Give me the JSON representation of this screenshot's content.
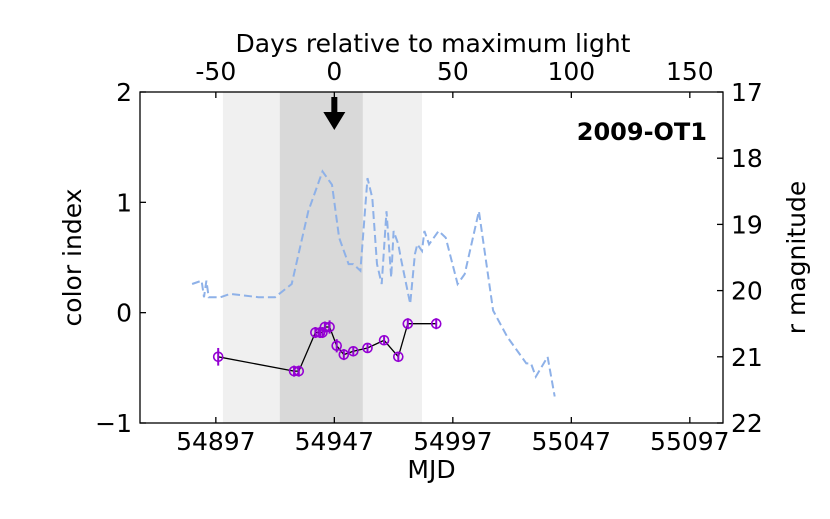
{
  "chart_data": {
    "type": "line",
    "title": "",
    "annotation": "2009-OT1",
    "xlabel": "MJD",
    "ylabel_left": "color index",
    "ylabel_right": "r magnitude",
    "xlabel_top": "Days relative to maximum light",
    "xlim": [
      54865,
      55111
    ],
    "ylim_left": [
      -1,
      2
    ],
    "ylim_right": [
      22,
      17
    ],
    "peak_mjd": 54947,
    "x_ticks": [
      54897,
      54947,
      54997,
      55047,
      55097
    ],
    "x_tick_labels": [
      "54897",
      "54947",
      "54997",
      "55047",
      "55097"
    ],
    "top_ticks": [
      -50,
      0,
      50,
      100,
      150
    ],
    "top_tick_labels": [
      "-50",
      "0",
      "50",
      "100",
      "150"
    ],
    "y_left_ticks": [
      -1,
      0,
      1,
      2
    ],
    "y_left_tick_labels": [
      "−1",
      "0",
      "1",
      "2"
    ],
    "y_right_ticks": [
      17,
      18,
      19,
      20,
      21,
      22
    ],
    "y_right_tick_labels": [
      "17",
      "18",
      "19",
      "20",
      "21",
      "22"
    ],
    "shaded_regions": [
      {
        "name": "outer",
        "x0": 54900,
        "x1": 54984,
        "color": "#f0f0f0"
      },
      {
        "name": "inner",
        "x0": 54924,
        "x1": 54959,
        "color": "#d9d9d9"
      }
    ],
    "arrow_mjd": 54947,
    "series": [
      {
        "name": "r magnitude",
        "axis": "right",
        "style": "dashed",
        "color": "#8eb1e8",
        "x": [
          54887,
          54891,
          54892,
          54893,
          54894,
          54899,
          54903,
          54915,
          54922,
          54929,
          54936,
          54942,
          54946,
          54949,
          54953,
          54955,
          54958,
          54961,
          54963,
          54965,
          54967,
          54969,
          54971,
          54972,
          54974,
          54975,
          54979,
          54981,
          54982,
          54984,
          54985,
          54987,
          54991,
          54994,
          54999,
          55002,
          55008,
          55014,
          55020,
          55028,
          55030,
          55032,
          55037,
          55040
        ],
        "y": [
          19.9,
          19.85,
          20.1,
          19.85,
          20.1,
          20.1,
          20.05,
          20.1,
          20.1,
          19.9,
          18.8,
          18.2,
          18.4,
          19.2,
          19.6,
          19.6,
          19.7,
          18.3,
          18.6,
          19.6,
          19.9,
          18.8,
          19.8,
          19.1,
          19.3,
          19.5,
          20.2,
          19.45,
          19.3,
          19.4,
          19.1,
          19.3,
          19.1,
          19.2,
          19.9,
          19.75,
          18.8,
          20.3,
          20.7,
          21.1,
          21.1,
          21.3,
          21.0,
          21.6
        ]
      },
      {
        "name": "color index",
        "axis": "left",
        "style": "solid-markers",
        "color": "#000000",
        "marker_color": "#9400d3",
        "x": [
          54898,
          54930,
          54932,
          54939,
          54941,
          54942,
          54943,
          54945,
          54948,
          54951,
          54955,
          54961,
          54968,
          54974,
          54978,
          54990
        ],
        "y": [
          -0.4,
          -0.53,
          -0.53,
          -0.18,
          -0.18,
          -0.18,
          -0.13,
          -0.13,
          -0.3,
          -0.38,
          -0.35,
          -0.32,
          -0.25,
          -0.4,
          -0.1,
          -0.1
        ],
        "yerr": [
          0.08,
          0.05,
          0.05,
          0.05,
          0.05,
          0.05,
          0.05,
          0.06,
          0.06,
          0.05,
          0.04,
          0.04,
          0.04,
          0.04,
          0.05,
          0.05
        ]
      }
    ]
  }
}
